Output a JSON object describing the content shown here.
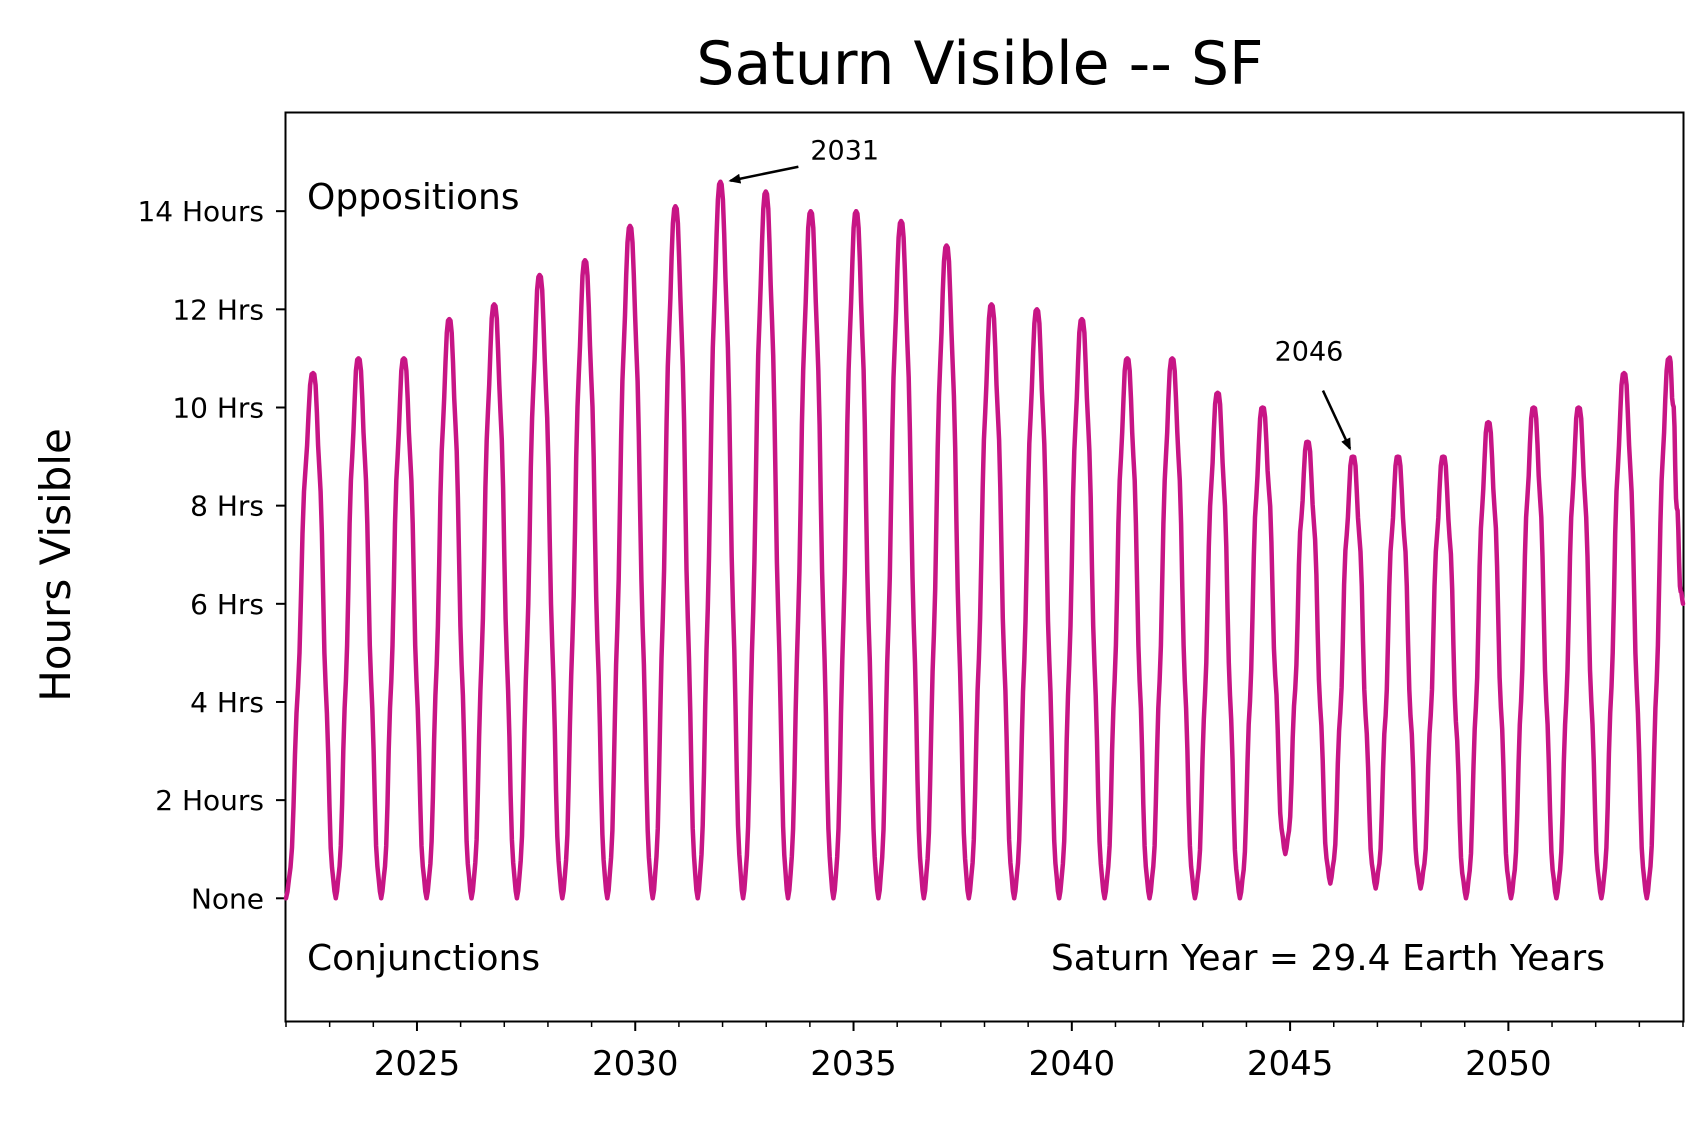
{
  "chart_data": {
    "type": "line",
    "title": "Saturn Visible -- SF",
    "xlabel": "",
    "ylabel": "Hours Visible",
    "xlim": [
      2022.0,
      2054.0
    ],
    "ylim": [
      -2.5,
      16
    ],
    "grid": false,
    "legend": "none",
    "x_ticks": [
      {
        "value": 2025,
        "label": "2025"
      },
      {
        "value": 2030,
        "label": "2030"
      },
      {
        "value": 2035,
        "label": "2035"
      },
      {
        "value": 2040,
        "label": "2040"
      },
      {
        "value": 2045,
        "label": "2045"
      },
      {
        "value": 2050,
        "label": "2050"
      }
    ],
    "y_ticks": [
      {
        "value": 0,
        "label": "None"
      },
      {
        "value": 2,
        "label": "2 Hours"
      },
      {
        "value": 4,
        "label": "4 Hrs"
      },
      {
        "value": 6,
        "label": "6 Hrs"
      },
      {
        "value": 8,
        "label": "8 Hrs"
      },
      {
        "value": 10,
        "label": "10 Hrs"
      },
      {
        "value": 12,
        "label": "12 Hrs"
      },
      {
        "value": 14,
        "label": "14 Hours"
      }
    ],
    "series": [
      {
        "color": "#c71585",
        "oppositions": [
          {
            "year": 2022.62,
            "hours": 10.7
          },
          {
            "year": 2023.66,
            "hours": 11.0
          },
          {
            "year": 2024.7,
            "hours": 11.0
          },
          {
            "year": 2025.74,
            "hours": 11.8
          },
          {
            "year": 2026.77,
            "hours": 12.1
          },
          {
            "year": 2027.81,
            "hours": 12.7
          },
          {
            "year": 2028.85,
            "hours": 13.0
          },
          {
            "year": 2029.88,
            "hours": 13.7
          },
          {
            "year": 2030.92,
            "hours": 14.1
          },
          {
            "year": 2031.95,
            "hours": 14.6
          },
          {
            "year": 2032.99,
            "hours": 14.4
          },
          {
            "year": 2034.02,
            "hours": 14.0
          },
          {
            "year": 2035.06,
            "hours": 14.0
          },
          {
            "year": 2036.09,
            "hours": 13.8
          },
          {
            "year": 2037.13,
            "hours": 13.3
          },
          {
            "year": 2038.16,
            "hours": 12.1
          },
          {
            "year": 2039.2,
            "hours": 12.0
          },
          {
            "year": 2040.23,
            "hours": 11.8
          },
          {
            "year": 2041.27,
            "hours": 11.0
          },
          {
            "year": 2042.3,
            "hours": 11.0
          },
          {
            "year": 2043.34,
            "hours": 10.3
          },
          {
            "year": 2044.37,
            "hours": 10.0
          },
          {
            "year": 2045.4,
            "hours": 9.3
          },
          {
            "year": 2046.44,
            "hours": 9.0
          },
          {
            "year": 2047.47,
            "hours": 9.0
          },
          {
            "year": 2048.51,
            "hours": 9.0
          },
          {
            "year": 2049.54,
            "hours": 9.7
          },
          {
            "year": 2050.58,
            "hours": 10.0
          },
          {
            "year": 2051.61,
            "hours": 10.0
          },
          {
            "year": 2052.65,
            "hours": 10.7
          },
          {
            "year": 2053.68,
            "hours": 11.0
          }
        ],
        "conjunctions": [
          {
            "year": 2022.0,
            "hours": 0.0
          },
          {
            "year": 2023.14,
            "hours": 0.0
          },
          {
            "year": 2024.18,
            "hours": 0.0
          },
          {
            "year": 2025.22,
            "hours": 0.0
          },
          {
            "year": 2026.25,
            "hours": 0.0
          },
          {
            "year": 2027.29,
            "hours": 0.0
          },
          {
            "year": 2028.33,
            "hours": 0.0
          },
          {
            "year": 2029.36,
            "hours": 0.0
          },
          {
            "year": 2030.4,
            "hours": 0.0
          },
          {
            "year": 2031.43,
            "hours": 0.0
          },
          {
            "year": 2032.47,
            "hours": 0.0
          },
          {
            "year": 2033.5,
            "hours": 0.0
          },
          {
            "year": 2034.54,
            "hours": 0.0
          },
          {
            "year": 2035.57,
            "hours": 0.0
          },
          {
            "year": 2036.61,
            "hours": 0.0
          },
          {
            "year": 2037.64,
            "hours": 0.0
          },
          {
            "year": 2038.68,
            "hours": 0.0
          },
          {
            "year": 2039.71,
            "hours": 0.0
          },
          {
            "year": 2040.75,
            "hours": 0.0
          },
          {
            "year": 2041.78,
            "hours": 0.0
          },
          {
            "year": 2042.82,
            "hours": 0.0
          },
          {
            "year": 2043.85,
            "hours": 0.0
          },
          {
            "year": 2044.89,
            "hours": 0.9
          },
          {
            "year": 2045.92,
            "hours": 0.3
          },
          {
            "year": 2046.96,
            "hours": 0.2
          },
          {
            "year": 2047.99,
            "hours": 0.2
          },
          {
            "year": 2049.03,
            "hours": 0.0
          },
          {
            "year": 2050.06,
            "hours": 0.0
          },
          {
            "year": 2051.1,
            "hours": 0.0
          },
          {
            "year": 2052.13,
            "hours": 0.0
          },
          {
            "year": 2053.17,
            "hours": 0.0
          }
        ],
        "end": {
          "year": 2054.0,
          "hours": 6.0
        }
      }
    ],
    "annotations": [
      {
        "text": "2031",
        "year": 2031.95,
        "hours": 14.6
      },
      {
        "text": "2046",
        "year": 2046.44,
        "hours": 9.0
      }
    ],
    "texts": {
      "top_left": "Oppositions",
      "bottom_left": "Conjunctions",
      "bottom_right": "Saturn Year = 29.4 Earth Years"
    }
  }
}
